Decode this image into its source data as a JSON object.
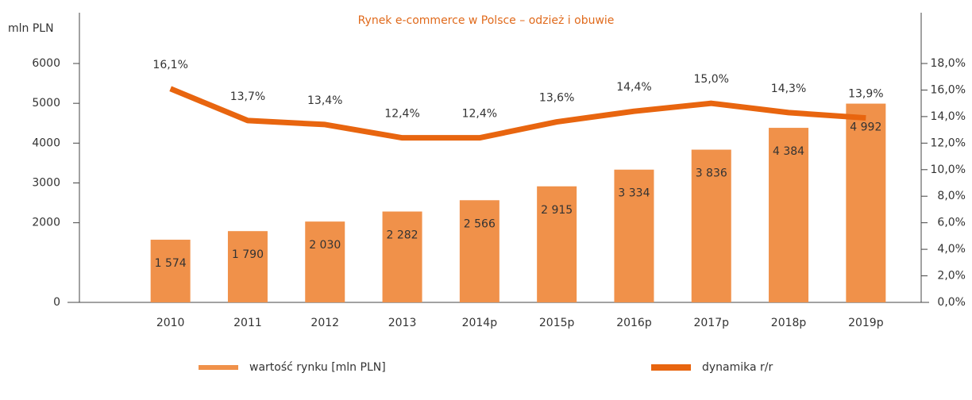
{
  "chart_data": {
    "type": "bar-line",
    "title": "Rynek e-commerce w Polsce – odzież i obuwie",
    "y_axis_label": "mln PLN",
    "categories": [
      "2010",
      "2011",
      "2012",
      "2013",
      "2014p",
      "2015p",
      "2016p",
      "2017p",
      "2018p",
      "2019p"
    ],
    "series": [
      {
        "name": "wartość rynku [mln PLN]",
        "type": "bar",
        "color": "#f0914a",
        "values": [
          1574,
          1790,
          2030,
          2282,
          2566,
          2915,
          3334,
          3836,
          4384,
          4992
        ],
        "value_labels": [
          "1 574",
          "1 790",
          "2 030",
          "2 282",
          "2 566",
          "2 915",
          "3 334",
          "3 836",
          "4 384",
          "4 992"
        ]
      },
      {
        "name": "dynamika r/r",
        "type": "line",
        "axis": "y2",
        "color": "#e8650f",
        "values": [
          16.1,
          13.7,
          13.4,
          12.4,
          12.4,
          13.6,
          14.4,
          15.0,
          14.3,
          13.9
        ],
        "value_labels": [
          "16,1%",
          "13,7%",
          "13,4%",
          "12,4%",
          "12,4%",
          "13,6%",
          "14,4%",
          "15,0%",
          "14,3%",
          "13,9%"
        ]
      }
    ],
    "ylim": [
      0,
      6000
    ],
    "yticks": [
      0,
      2000,
      3000,
      4000,
      5000,
      6000
    ],
    "y2lim": [
      0,
      18
    ],
    "y2ticks": [
      {
        "value": 0,
        "label": "0,0%"
      },
      {
        "value": 2,
        "label": "2,0%"
      },
      {
        "value": 4,
        "label": "4,0%"
      },
      {
        "value": 6,
        "label": "6,0%"
      },
      {
        "value": 8,
        "label": "8,0%"
      },
      {
        "value": 10,
        "label": "10,0%"
      },
      {
        "value": 12,
        "label": "12,0%"
      },
      {
        "value": 14,
        "label": "14,0%"
      },
      {
        "value": 16,
        "label": "16,0%"
      },
      {
        "value": 18,
        "label": "18,0%"
      }
    ],
    "legend": "bottom"
  }
}
